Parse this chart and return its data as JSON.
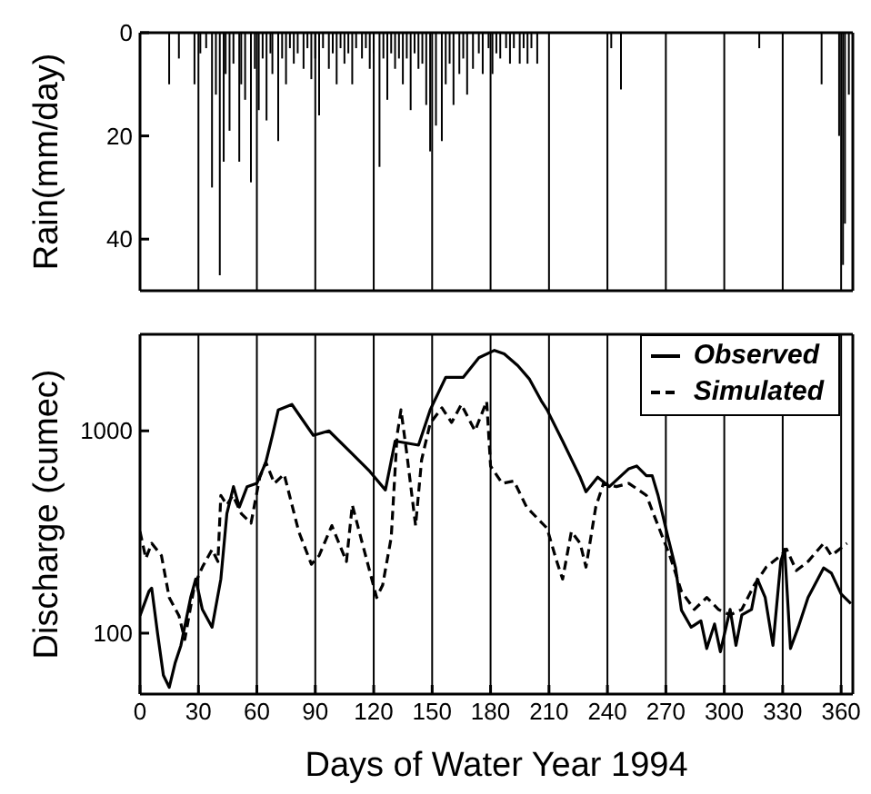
{
  "chart_data": [
    {
      "type": "bar",
      "ylabel": "Rain(mm/day)",
      "color": "#000000",
      "xlim": [
        0,
        366
      ],
      "xticks": [
        0,
        30,
        60,
        90,
        120,
        150,
        180,
        210,
        240,
        270,
        300,
        330,
        360
      ],
      "ylim": [
        50,
        0
      ],
      "yticks": [
        0,
        20,
        40
      ],
      "grid": "x",
      "tick_labels": "y",
      "x": [
        15,
        20,
        28,
        31,
        34,
        37,
        39,
        41,
        43,
        44,
        46,
        48,
        51,
        52,
        54,
        57,
        59,
        61,
        63,
        65,
        67,
        68,
        71,
        73,
        75,
        77,
        79,
        81,
        84,
        86,
        88,
        90,
        92,
        94,
        97,
        99,
        101,
        103,
        105,
        107,
        109,
        111,
        114,
        116,
        118,
        120,
        123,
        125,
        127,
        129,
        131,
        133,
        135,
        137,
        139,
        141,
        143,
        145,
        147,
        149,
        152,
        155,
        157,
        159,
        161,
        164,
        166,
        168,
        171,
        174,
        176,
        179,
        181,
        183,
        185,
        188,
        190,
        192,
        195,
        197,
        199,
        201,
        204,
        242,
        247,
        318,
        350,
        359,
        361,
        362,
        364
      ],
      "values": [
        10,
        5,
        10,
        4,
        3,
        30,
        12,
        47,
        25,
        8,
        19,
        6,
        25,
        10,
        13,
        29,
        7,
        15,
        5,
        17,
        4,
        8,
        21,
        5,
        10,
        3,
        6,
        4,
        7,
        3,
        9,
        5,
        16,
        3,
        7,
        4,
        10,
        3,
        6,
        4,
        10,
        3,
        5,
        3,
        7,
        4,
        26,
        5,
        13,
        4,
        7,
        5,
        10,
        5,
        15,
        4,
        7,
        6,
        14,
        23,
        18,
        21,
        10,
        6,
        14,
        8,
        5,
        12,
        7,
        4,
        8,
        3,
        8,
        4,
        5,
        3,
        6,
        3,
        6,
        3,
        6,
        3,
        6,
        3,
        11,
        3,
        10,
        20,
        45,
        37,
        12
      ]
    },
    {
      "type": "line",
      "xlabel": "Days of Water Year 1994",
      "ylabel": "Discharge (cumec)",
      "xlim": [
        0,
        366
      ],
      "xticks": [
        0,
        30,
        60,
        90,
        120,
        150,
        180,
        210,
        240,
        270,
        300,
        330,
        360
      ],
      "ylim": [
        50,
        3000
      ],
      "yticks": [
        100,
        1000
      ],
      "log": "y",
      "grid": "x",
      "legend": "top right",
      "marker": "none",
      "series": [
        {
          "name": "Observed",
          "color": "#000000",
          "line_style": "solid",
          "x": [
            0,
            4.6,
            6,
            9,
            12,
            15,
            18,
            21,
            26,
            28.6,
            32,
            37,
            41.5,
            44.6,
            48,
            51,
            55,
            60,
            64.6,
            68,
            71,
            78,
            89,
            97,
            109,
            118,
            126,
            131,
            143,
            149,
            157,
            166,
            174,
            182,
            187,
            194,
            200,
            206,
            209,
            217,
            226,
            229,
            235,
            241,
            251,
            255,
            260,
            263,
            266,
            271,
            275,
            278,
            283,
            288,
            291,
            295,
            298,
            303,
            306,
            309,
            314,
            317,
            321,
            325,
            329,
            331,
            334,
            338,
            343,
            348,
            351,
            355,
            360,
            365
          ],
          "values": [
            122,
            161,
            167,
            100,
            62,
            54,
            71,
            87,
            150,
            185,
            131,
            107,
            185,
            390,
            530,
            420,
            530,
            550,
            700,
            950,
            1270,
            1350,
            950,
            1000,
            770,
            630,
            510,
            890,
            850,
            1270,
            1840,
            1840,
            2300,
            2500,
            2400,
            2100,
            1800,
            1410,
            1270,
            890,
            590,
            500,
            590,
            530,
            650,
            670,
            600,
            600,
            480,
            300,
            210,
            130,
            107,
            115,
            84,
            111,
            81,
            131,
            87,
            123,
            131,
            185,
            150,
            87,
            226,
            260,
            84,
            107,
            150,
            185,
            210,
            198,
            156,
            140
          ]
        },
        {
          "name": "Simulated",
          "color": "#000000",
          "line_style": "dashed",
          "x": [
            0,
            3,
            6,
            11,
            15,
            20,
            23,
            28,
            32,
            37,
            40,
            41.5,
            44.6,
            47.7,
            52,
            57,
            61.5,
            64.6,
            69,
            74,
            81.5,
            88,
            92,
            98.5,
            106,
            109,
            115,
            121.5,
            124.6,
            129,
            132,
            134,
            137,
            141.5,
            144.6,
            149,
            155,
            160,
            165,
            172,
            178,
            180,
            186,
            192,
            198.5,
            204.6,
            209,
            214,
            217,
            221.5,
            226,
            229,
            234,
            238,
            244.6,
            251,
            260,
            266,
            272,
            278,
            284.6,
            291,
            297,
            303,
            309,
            315.4,
            321.5,
            329,
            332,
            337,
            343,
            351,
            355,
            363
          ],
          "values": [
            318,
            234,
            278,
            242,
            150,
            122,
            93,
            173,
            212,
            259,
            226,
            480,
            430,
            480,
            390,
            350,
            590,
            700,
            550,
            610,
            318,
            219,
            242,
            340,
            226,
            430,
            259,
            150,
            173,
            298,
            950,
            1270,
            770,
            340,
            720,
            1090,
            1300,
            1100,
            1350,
            1000,
            1400,
            670,
            550,
            565,
            420,
            365,
            330,
            226,
            185,
            318,
            278,
            212,
            420,
            550,
            530,
            550,
            480,
            340,
            242,
            161,
            131,
            150,
            131,
            123,
            131,
            173,
            212,
            242,
            260,
            204,
            226,
            278,
            242,
            278
          ]
        }
      ]
    }
  ]
}
